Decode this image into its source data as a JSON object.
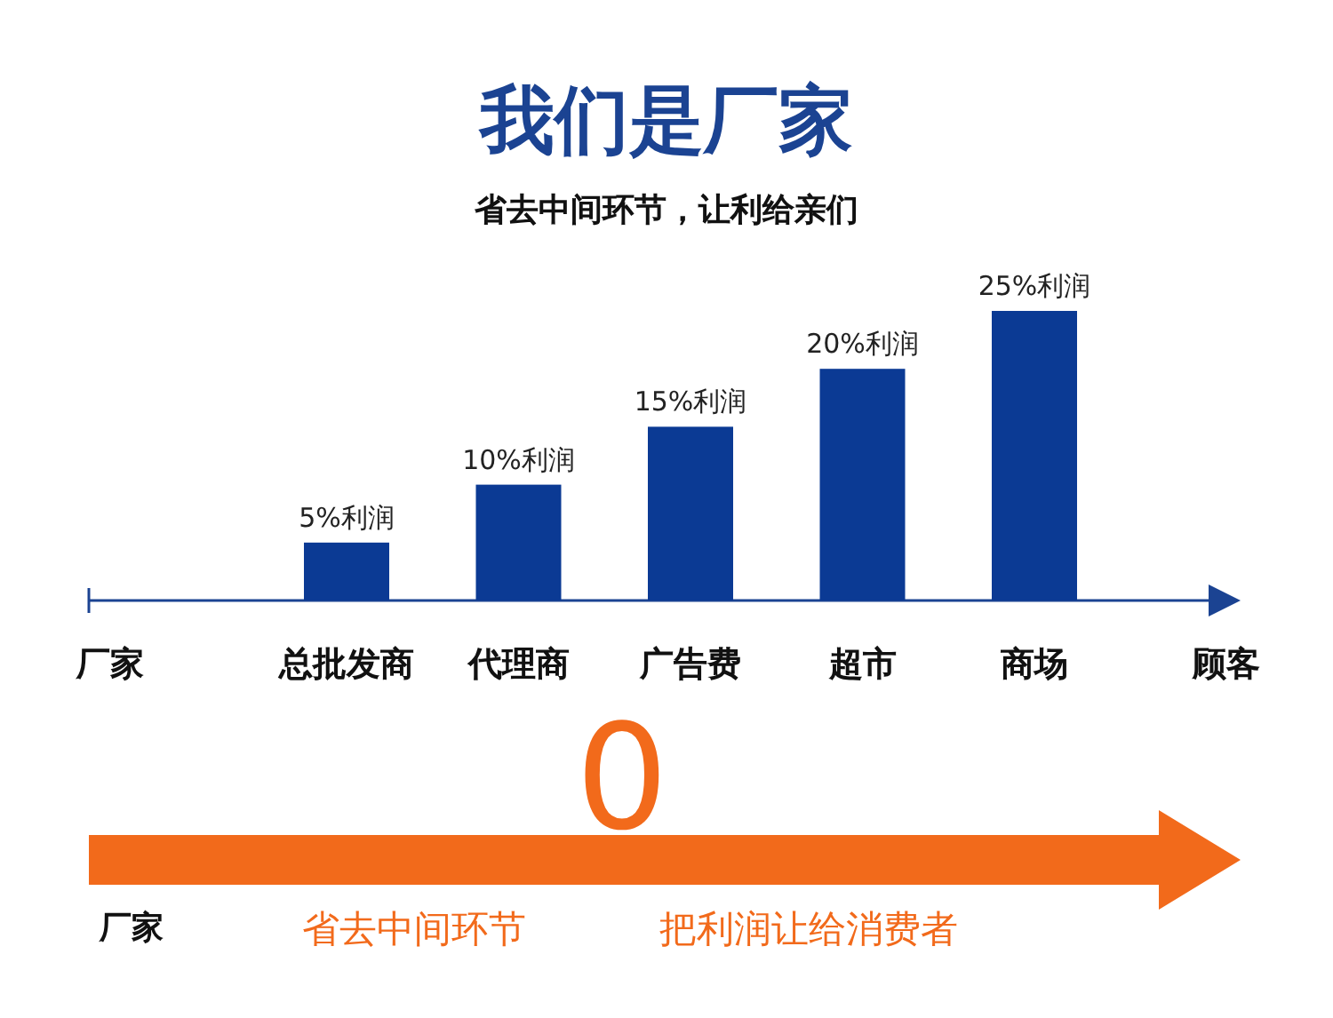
{
  "chart_data": {
    "type": "bar",
    "title": "我们是厂家",
    "subtitle": "省去中间环节，让利给亲们",
    "categories": [
      "厂家",
      "总批发商",
      "代理商",
      "广告费",
      "超市",
      "商场",
      "顾客"
    ],
    "values": [
      null,
      5,
      10,
      15,
      20,
      25,
      null
    ],
    "color": "#0b3a94",
    "value_labels": [
      null,
      "5%利润",
      "10%利润",
      "15%利润",
      "20%利润",
      "25%利润",
      null
    ],
    "annotations": [
      "0",
      "厂家",
      "省去中间环节",
      "把利润让给消费者"
    ]
  }
}
